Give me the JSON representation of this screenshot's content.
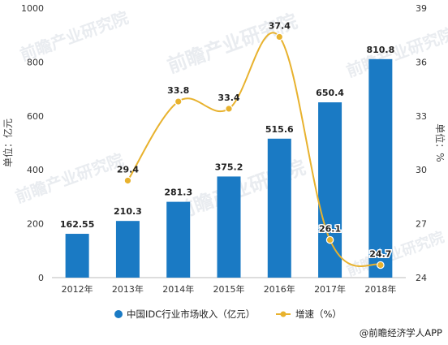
{
  "chart_data": {
    "type": "bar",
    "categories": [
      "2012年",
      "2013年",
      "2014年",
      "2015年",
      "2016年",
      "2017年",
      "2018年"
    ],
    "series": [
      {
        "name": "中国IDC行业市场收入（亿元）",
        "type": "bar",
        "axis": "left",
        "values": [
          162.55,
          210.3,
          281.3,
          375.2,
          515.6,
          650.4,
          810.8
        ],
        "labels": [
          "162.55",
          "210.3",
          "281.3",
          "375.2",
          "515.6",
          "650.4",
          "810.8"
        ],
        "color": "#1a7ac4"
      },
      {
        "name": "增速（%）",
        "type": "line",
        "axis": "right",
        "values": [
          null,
          29.4,
          33.8,
          33.4,
          37.4,
          26.1,
          24.7
        ],
        "labels": [
          "",
          "29.4",
          "33.8",
          "33.4",
          "37.4",
          "26.1",
          "24.7"
        ],
        "color": "#e8b22e"
      }
    ],
    "ylabel": "单位：亿元",
    "y2label": "单位：%",
    "ylim": [
      0,
      1000
    ],
    "y2lim": [
      24,
      39
    ],
    "yticks": [
      "0",
      "200",
      "400",
      "600",
      "800",
      "1000"
    ],
    "y2ticks": [
      "24",
      "27",
      "30",
      "33",
      "36",
      "39"
    ],
    "legend_position": "bottom-center",
    "grid": false
  },
  "source": "@前瞻经济学人APP",
  "watermark": "前瞻产业研究院"
}
